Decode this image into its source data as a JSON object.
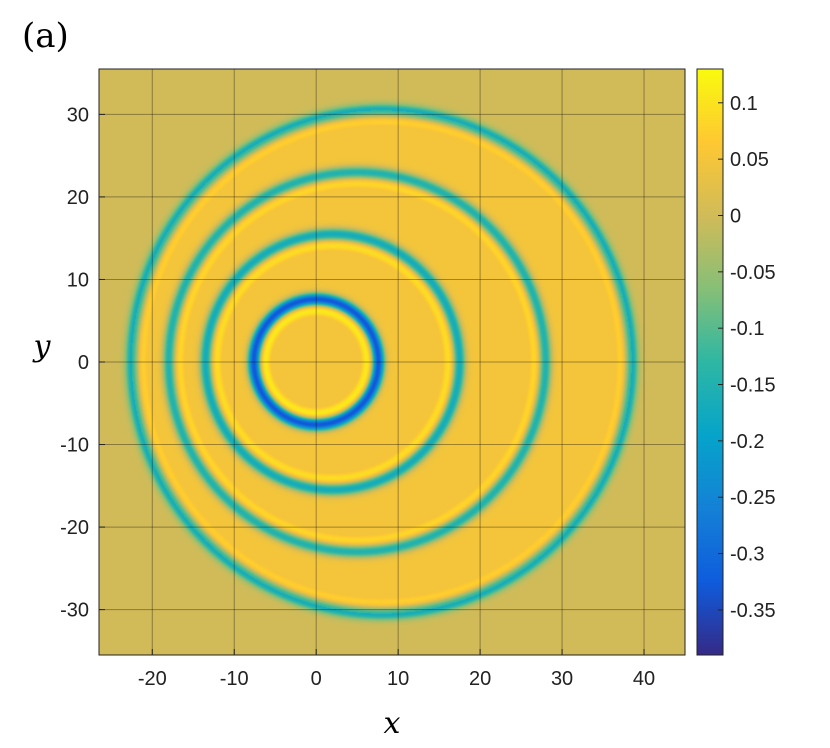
{
  "panel_label": "(a)",
  "chart_data": {
    "type": "heatmap",
    "title": "",
    "xlabel": "x",
    "ylabel": "y",
    "xlim": [
      -26.5,
      45
    ],
    "ylim": [
      -35.5,
      35.5
    ],
    "x_ticks": [
      -20,
      -10,
      0,
      10,
      20,
      30,
      40
    ],
    "x_tick_labels": [
      "-20",
      "-10",
      "0",
      "10",
      "20",
      "30",
      "40"
    ],
    "y_ticks": [
      30,
      20,
      10,
      0,
      -10,
      -20,
      -30
    ],
    "y_tick_labels": [
      "30",
      "20",
      "10",
      "0",
      "-10",
      "-20",
      "-30"
    ],
    "grid": true,
    "colormap": "parula",
    "background_value": 0,
    "colorbar": {
      "clim": [
        -0.39,
        0.13
      ],
      "ticks": [
        0.1,
        0.05,
        0,
        -0.05,
        -0.1,
        -0.15,
        -0.2,
        -0.25,
        -0.3,
        -0.35
      ],
      "tick_labels": [
        "0.1",
        "0.05",
        "0",
        "-0.05",
        "-0.1",
        "-0.15",
        "-0.2",
        "-0.25",
        "-0.3",
        "-0.35"
      ]
    },
    "rings": [
      {
        "center_x": 0,
        "center_y": 0,
        "radius": 7.6,
        "min_value": -0.38,
        "inner_value": 0.05,
        "rim_value": 0.12
      },
      {
        "center_x": 2,
        "center_y": 0,
        "radius": 15.5,
        "min_value": -0.22,
        "inner_value": 0.05,
        "rim_value": 0.1
      },
      {
        "center_x": 5,
        "center_y": 0,
        "radius": 23,
        "min_value": -0.2,
        "inner_value": 0.05,
        "rim_value": 0.09
      },
      {
        "center_x": 8,
        "center_y": 0,
        "radius": 30.5,
        "min_value": -0.18,
        "inner_value": 0.05,
        "rim_value": 0.08
      }
    ]
  },
  "colors": {
    "background_field": "#c8bb2f",
    "parula": [
      "#352a87",
      "#0f5cdd",
      "#1481d6",
      "#06a4ca",
      "#2eb7a4",
      "#87bf77",
      "#d1bb59",
      "#fec832",
      "#f9fb0e"
    ]
  }
}
